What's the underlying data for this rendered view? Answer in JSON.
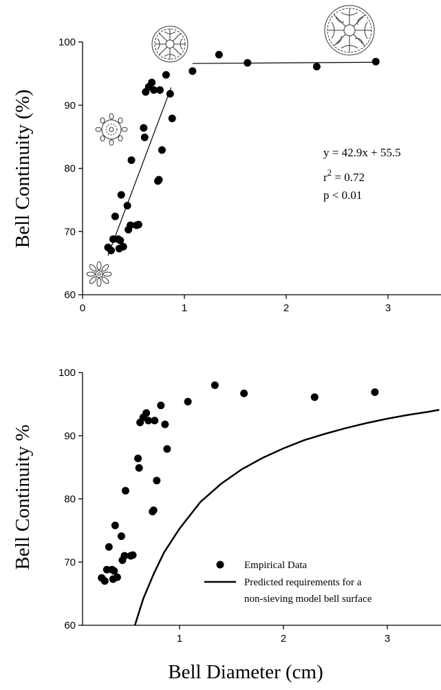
{
  "chart_data": [
    {
      "type": "scatter",
      "ylabel": "Bell Continuity (%)",
      "xlim": [
        0,
        3.5
      ],
      "ylim": [
        60,
        100
      ],
      "xticks": [
        "0",
        "1",
        "2",
        "3"
      ],
      "yticks": [
        "60",
        "70",
        "80",
        "90",
        "100"
      ],
      "grid": false,
      "series": [
        {
          "points": [
            [
              0.25,
              67.5
            ],
            [
              0.28,
              67.0
            ],
            [
              0.3,
              68.8
            ],
            [
              0.32,
              72.4
            ],
            [
              0.35,
              68.8
            ],
            [
              0.36,
              67.3
            ],
            [
              0.37,
              68.6
            ],
            [
              0.38,
              75.8
            ],
            [
              0.4,
              67.6
            ],
            [
              0.44,
              74.1
            ],
            [
              0.45,
              70.3
            ],
            [
              0.47,
              71.0
            ],
            [
              0.48,
              81.3
            ],
            [
              0.53,
              71.0
            ],
            [
              0.55,
              71.1
            ],
            [
              0.6,
              86.4
            ],
            [
              0.61,
              84.9
            ],
            [
              0.62,
              92.1
            ],
            [
              0.65,
              92.9
            ],
            [
              0.68,
              93.6
            ],
            [
              0.7,
              92.4
            ],
            [
              0.74,
              78.0
            ],
            [
              0.75,
              78.2
            ],
            [
              0.76,
              92.4
            ],
            [
              0.78,
              82.9
            ],
            [
              0.82,
              94.8
            ],
            [
              0.86,
              91.8
            ],
            [
              0.88,
              87.9
            ],
            [
              1.08,
              95.4
            ],
            [
              1.34,
              98.0
            ],
            [
              1.62,
              96.7
            ],
            [
              2.3,
              96.1
            ],
            [
              2.88,
              96.9
            ]
          ]
        }
      ],
      "fit_lines": [
        {
          "x": [
            0.25,
            0.87
          ],
          "y": [
            66.2,
            92.8
          ]
        },
        {
          "x": [
            1.08,
            2.88
          ],
          "y": [
            96.6,
            96.8
          ]
        }
      ],
      "annotations": [
        "y = 42.9x + 55.5",
        "r",
        "2",
        " = 0.72",
        "p < 0.01"
      ]
    },
    {
      "type": "scatter",
      "xlabel": "Bell Diameter (cm)",
      "ylabel": "Bell Continuity %",
      "xlim": [
        0,
        3.5
      ],
      "ylim": [
        60,
        100
      ],
      "xticks": [
        "1",
        "2",
        "3"
      ],
      "yticks": [
        "60",
        "70",
        "80",
        "90",
        "100"
      ],
      "grid": false,
      "legend_position": "lower-center",
      "series": [
        {
          "name": "Empirical Data",
          "points": [
            [
              0.25,
              67.5
            ],
            [
              0.28,
              67.0
            ],
            [
              0.3,
              68.8
            ],
            [
              0.32,
              72.4
            ],
            [
              0.35,
              68.8
            ],
            [
              0.36,
              67.3
            ],
            [
              0.37,
              68.6
            ],
            [
              0.38,
              75.8
            ],
            [
              0.4,
              67.6
            ],
            [
              0.44,
              74.1
            ],
            [
              0.45,
              70.3
            ],
            [
              0.47,
              71.0
            ],
            [
              0.48,
              81.3
            ],
            [
              0.53,
              71.0
            ],
            [
              0.55,
              71.1
            ],
            [
              0.6,
              86.4
            ],
            [
              0.61,
              84.9
            ],
            [
              0.62,
              92.1
            ],
            [
              0.65,
              92.9
            ],
            [
              0.68,
              93.6
            ],
            [
              0.7,
              92.4
            ],
            [
              0.74,
              78.0
            ],
            [
              0.75,
              78.2
            ],
            [
              0.76,
              92.4
            ],
            [
              0.78,
              82.9
            ],
            [
              0.82,
              94.8
            ],
            [
              0.86,
              91.8
            ],
            [
              0.88,
              87.9
            ],
            [
              1.08,
              95.4
            ],
            [
              1.34,
              98.0
            ],
            [
              1.62,
              96.7
            ],
            [
              2.3,
              96.1
            ],
            [
              2.88,
              96.9
            ]
          ]
        },
        {
          "name": "Predicted requirements for a non-sieving model bell surface",
          "legend_lines": [
            "Predicted requirements for a",
            "non-sieving model bell surface"
          ],
          "line": [
            [
              0.57,
              60.0
            ],
            [
              0.65,
              64.2
            ],
            [
              0.75,
              68.1
            ],
            [
              0.85,
              71.5
            ],
            [
              1.0,
              75.3
            ],
            [
              1.2,
              79.5
            ],
            [
              1.4,
              82.4
            ],
            [
              1.6,
              84.7
            ],
            [
              1.8,
              86.5
            ],
            [
              2.0,
              88.0
            ],
            [
              2.2,
              89.3
            ],
            [
              2.4,
              90.3
            ],
            [
              2.6,
              91.2
            ],
            [
              2.8,
              92.0
            ],
            [
              3.0,
              92.7
            ],
            [
              3.2,
              93.3
            ],
            [
              3.4,
              93.8
            ],
            [
              3.5,
              94.1
            ]
          ]
        }
      ]
    }
  ]
}
